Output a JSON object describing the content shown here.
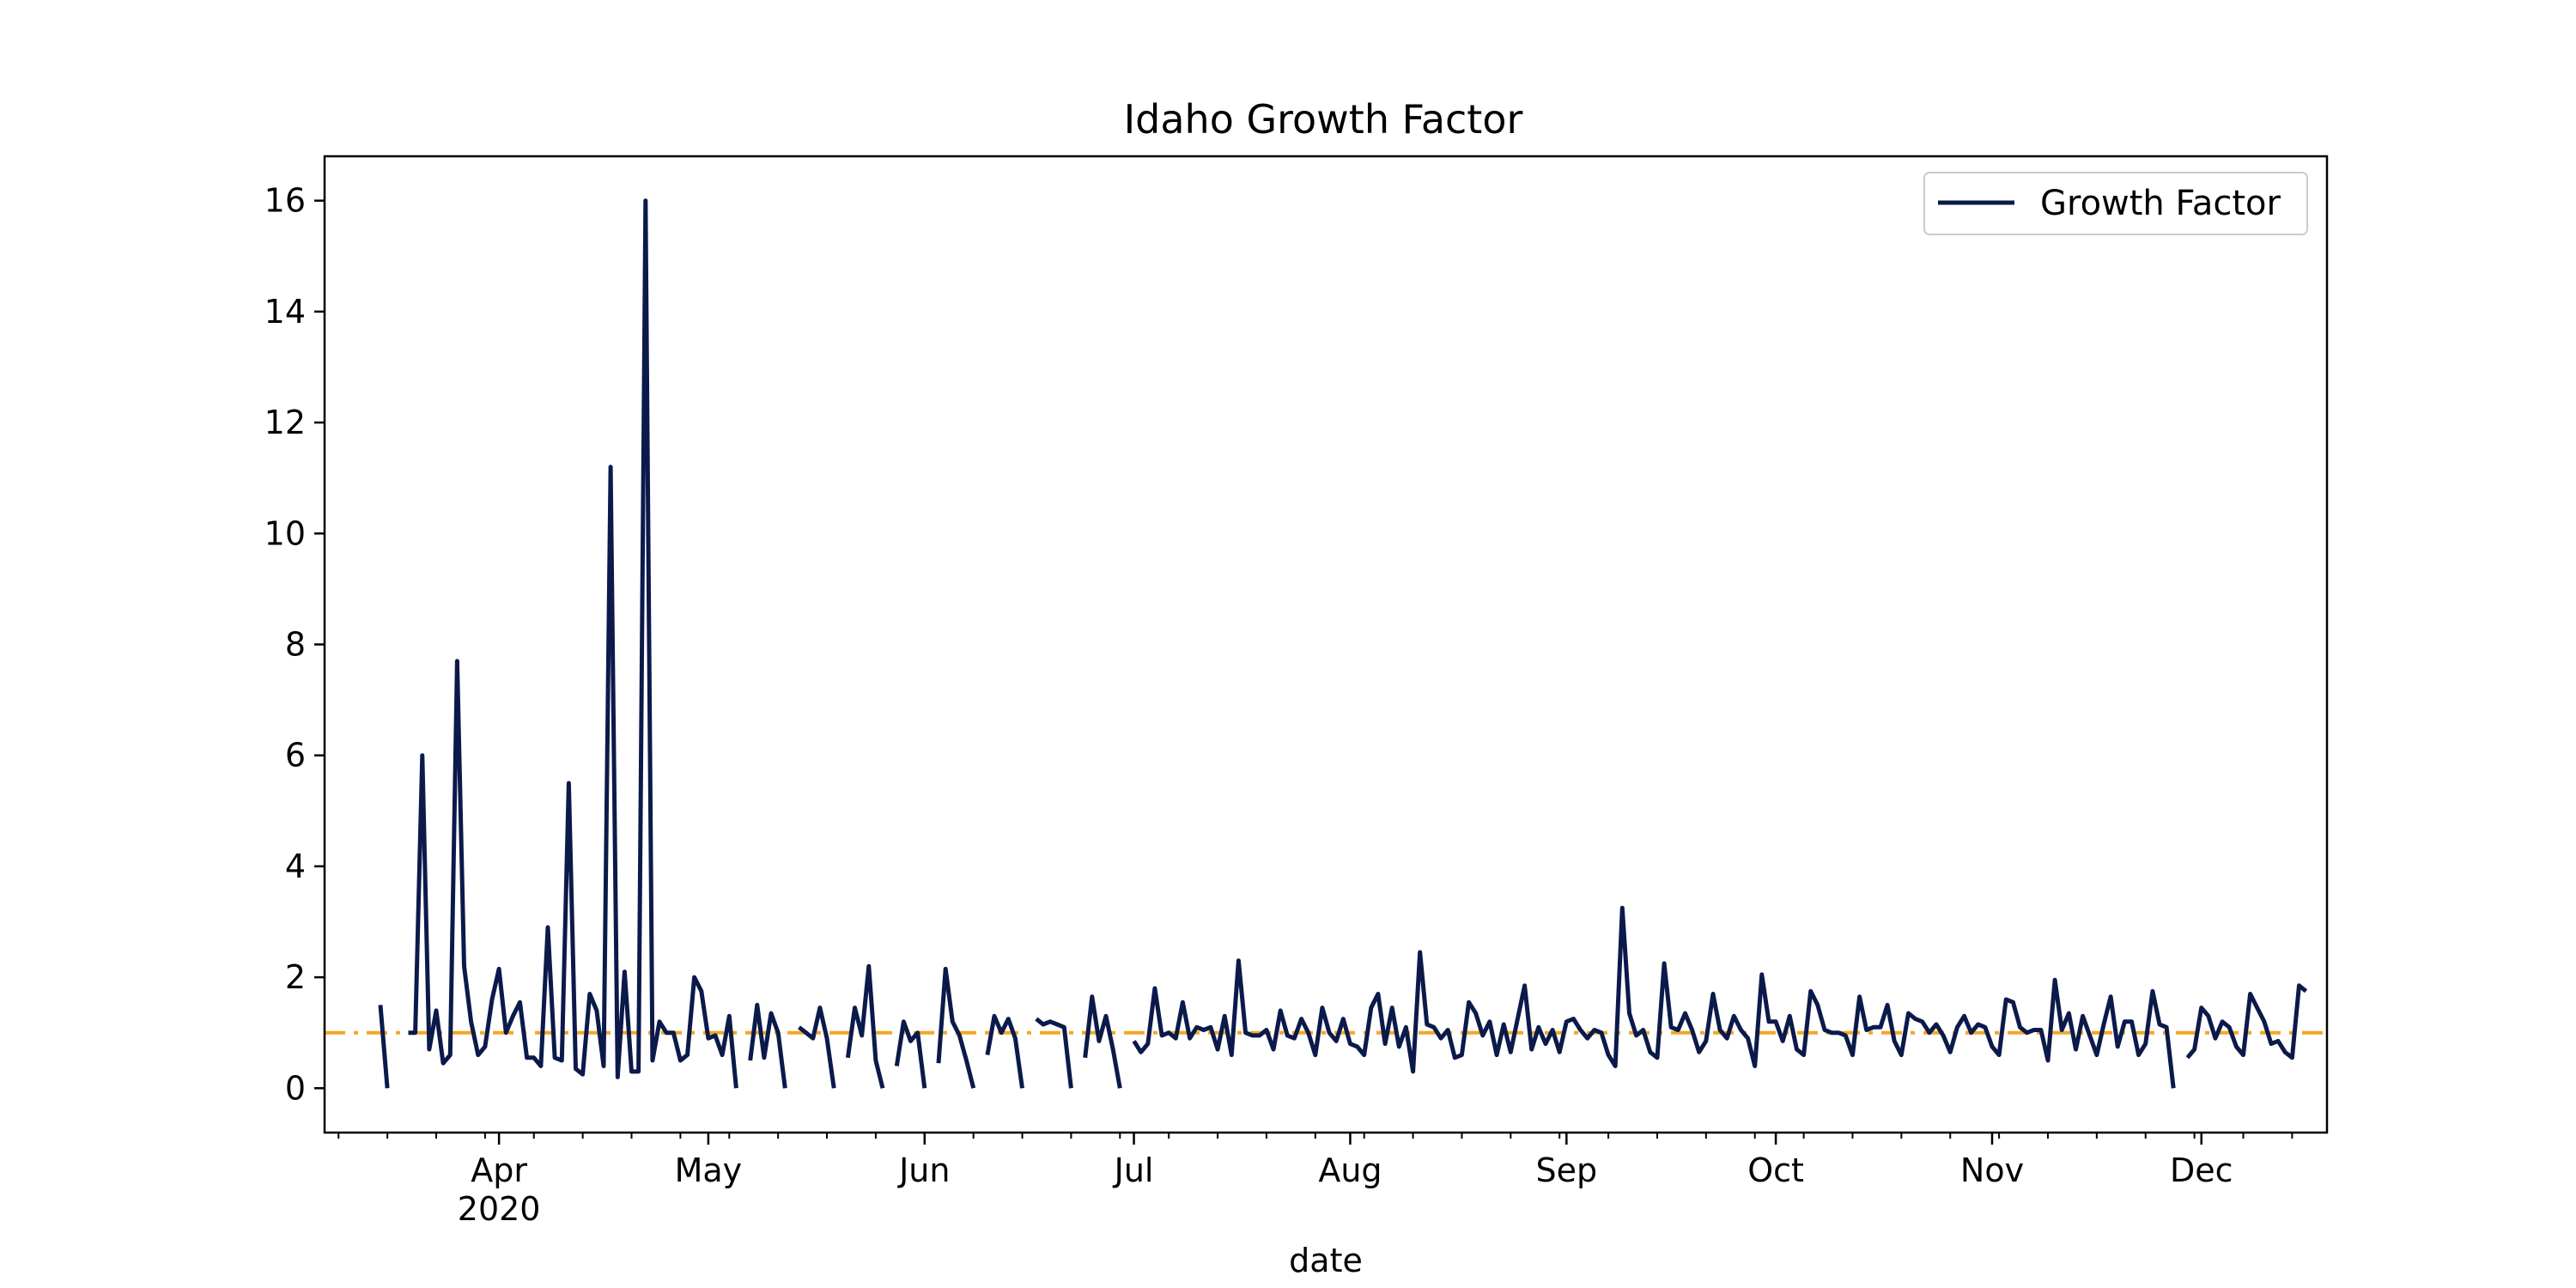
{
  "chart_data": {
    "type": "line",
    "title": "Idaho Growth Factor",
    "xlabel": "date",
    "ylabel": "",
    "x_range": [
      "2020-03-07",
      "2020-12-19"
    ],
    "ylim": [
      -0.8,
      16.8
    ],
    "y_ticks": [
      0,
      2,
      4,
      6,
      8,
      10,
      12,
      14,
      16
    ],
    "x_ticks": [
      {
        "date": "2020-04-01",
        "label": "Apr",
        "sublabel": "2020"
      },
      {
        "date": "2020-05-01",
        "label": "May",
        "sublabel": ""
      },
      {
        "date": "2020-06-01",
        "label": "Jun",
        "sublabel": ""
      },
      {
        "date": "2020-07-01",
        "label": "Jul",
        "sublabel": ""
      },
      {
        "date": "2020-08-01",
        "label": "Aug",
        "sublabel": ""
      },
      {
        "date": "2020-09-01",
        "label": "Sep",
        "sublabel": ""
      },
      {
        "date": "2020-10-01",
        "label": "Oct",
        "sublabel": ""
      },
      {
        "date": "2020-11-01",
        "label": "Nov",
        "sublabel": ""
      },
      {
        "date": "2020-12-01",
        "label": "Dec",
        "sublabel": ""
      }
    ],
    "grid": false,
    "legend": {
      "placement": "top-right",
      "entries": [
        "Growth Factor"
      ]
    },
    "reference_line": {
      "y": 1.0,
      "style": "dash-dot",
      "color": "#f5a623"
    },
    "series": [
      {
        "name": "Growth Factor",
        "color": "#0b1a4a",
        "x_start": "2020-03-15",
        "values": [
          1.5,
          0,
          null,
          null,
          1.0,
          1.0,
          6.0,
          0.7,
          1.4,
          0.45,
          0.6,
          7.7,
          2.2,
          1.2,
          0.6,
          0.75,
          1.6,
          2.15,
          1.0,
          1.3,
          1.55,
          0.55,
          0.55,
          0.4,
          2.9,
          0.55,
          0.5,
          5.5,
          0.35,
          0.25,
          1.7,
          1.4,
          0.4,
          11.2,
          0.2,
          2.1,
          0.3,
          0.3,
          16.0,
          0.5,
          1.2,
          1.0,
          1.0,
          0.5,
          0.6,
          2.0,
          1.75,
          0.9,
          0.95,
          0.6,
          1.3,
          0,
          null,
          0.5,
          1.5,
          0.55,
          1.35,
          1.0,
          0,
          null,
          1.1,
          1.0,
          0.9,
          1.45,
          0.9,
          0,
          null,
          0.55,
          1.45,
          0.95,
          2.2,
          0.5,
          0,
          null,
          0.4,
          1.2,
          0.85,
          1.0,
          0,
          null,
          0.45,
          2.15,
          1.2,
          0.95,
          0.5,
          0,
          null,
          0.6,
          1.3,
          1.0,
          1.25,
          0.9,
          0,
          null,
          1.25,
          1.15,
          1.2,
          1.15,
          1.1,
          0,
          null,
          0.55,
          1.65,
          0.85,
          1.3,
          0.7,
          0,
          null,
          0.85,
          0.65,
          0.8,
          1.8,
          0.95,
          1.0,
          0.9,
          1.55,
          0.9,
          1.1,
          1.05,
          1.1,
          0.7,
          1.3,
          0.6,
          2.3,
          1.0,
          0.95,
          0.95,
          1.05,
          0.7,
          1.4,
          0.95,
          0.9,
          1.25,
          1.0,
          0.6,
          1.45,
          1.0,
          0.85,
          1.25,
          0.8,
          0.75,
          0.6,
          1.45,
          1.7,
          0.8,
          1.45,
          0.75,
          1.1,
          0.3,
          2.45,
          1.15,
          1.1,
          0.9,
          1.05,
          0.55,
          0.6,
          1.55,
          1.35,
          0.95,
          1.2,
          0.6,
          1.15,
          0.65,
          1.25,
          1.85,
          0.7,
          1.1,
          0.8,
          1.05,
          0.65,
          1.2,
          1.25,
          1.05,
          0.9,
          1.05,
          1.0,
          0.6,
          0.4,
          3.25,
          1.35,
          0.95,
          1.05,
          0.65,
          0.55,
          2.25,
          1.1,
          1.05,
          1.35,
          1.05,
          0.65,
          0.85,
          1.7,
          1.05,
          0.9,
          1.3,
          1.05,
          0.9,
          0.4,
          2.05,
          1.2,
          1.2,
          0.85,
          1.3,
          0.7,
          0.6,
          1.75,
          1.5,
          1.05,
          1.0,
          1.0,
          0.95,
          0.6,
          1.65,
          1.05,
          1.1,
          1.1,
          1.5,
          0.85,
          0.6,
          1.35,
          1.25,
          1.2,
          1.0,
          1.15,
          0.95,
          0.65,
          1.1,
          1.3,
          1.0,
          1.15,
          1.1,
          0.75,
          0.6,
          1.6,
          1.55,
          1.1,
          1.0,
          1.05,
          1.05,
          0.5,
          1.95,
          1.05,
          1.35,
          0.7,
          1.3,
          0.95,
          0.6,
          1.15,
          1.65,
          0.75,
          1.2,
          1.2,
          0.6,
          0.8,
          1.75,
          1.15,
          1.1,
          0,
          null,
          0.55,
          0.7,
          1.45,
          1.3,
          0.9,
          1.2,
          1.1,
          0.75,
          0.6,
          1.7,
          1.45,
          1.2,
          0.8,
          0.85,
          0.65,
          0.55,
          1.85,
          1.75
        ]
      }
    ]
  }
}
